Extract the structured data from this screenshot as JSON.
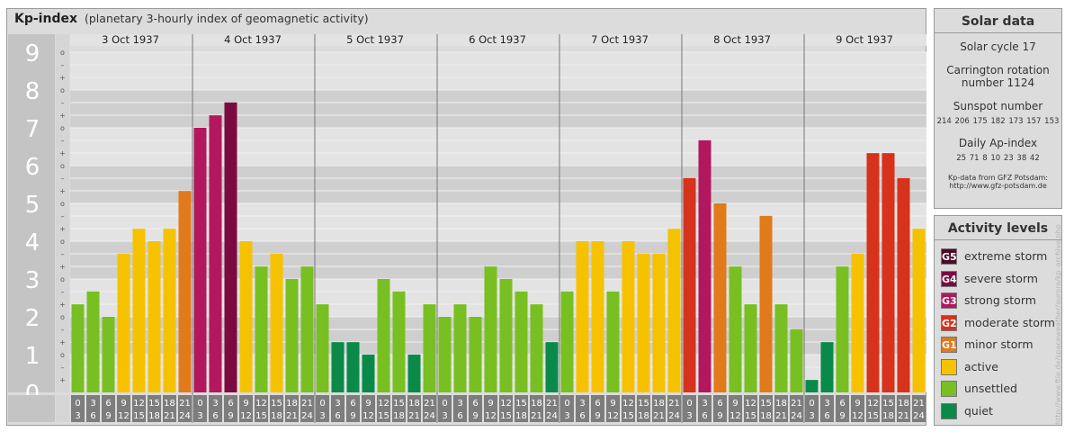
{
  "title": "Kp-index",
  "subtitle": "(planetary 3-hourly index of geomagnetic activity)",
  "y_axis": {
    "major_labels": [
      "0",
      "1",
      "2",
      "3",
      "4",
      "5",
      "6",
      "7",
      "8",
      "9"
    ],
    "minor_labels": [
      "+",
      "–",
      "o"
    ]
  },
  "chart_data": {
    "type": "bar",
    "title": "Kp-index",
    "ylim": [
      0,
      9.33
    ],
    "days": [
      "3 Oct 1937",
      "4 Oct 1937",
      "5 Oct 1937",
      "6 Oct 1937",
      "7 Oct 1937",
      "8 Oct 1937",
      "9 Oct 1937"
    ],
    "interval_top": [
      "0",
      "3",
      "6",
      "9",
      "12",
      "15",
      "18",
      "21"
    ],
    "interval_bottom": [
      "3",
      "6",
      "9",
      "12",
      "15",
      "18",
      "21",
      "24"
    ],
    "values": [
      [
        2.33,
        2.67,
        2.0,
        3.67,
        4.33,
        4.0,
        4.33,
        5.33
      ],
      [
        7.0,
        7.33,
        7.67,
        4.0,
        3.33,
        3.67,
        3.0,
        3.33
      ],
      [
        2.33,
        1.33,
        1.33,
        1.0,
        3.0,
        2.67,
        1.0,
        2.33
      ],
      [
        2.0,
        2.33,
        2.0,
        3.33,
        3.0,
        2.67,
        2.33,
        1.33
      ],
      [
        2.67,
        4.0,
        4.0,
        2.67,
        4.0,
        3.67,
        3.67,
        4.33
      ],
      [
        5.67,
        6.67,
        5.0,
        3.33,
        2.33,
        4.67,
        2.33,
        1.67
      ],
      [
        0.33,
        1.33,
        3.33,
        3.67,
        6.33,
        6.33,
        5.67,
        4.33
      ]
    ]
  },
  "solar": {
    "heading": "Solar data",
    "cycle": "Solar cycle 17",
    "rotation_line1": "Carrington rotation",
    "rotation_line2": "number 1124",
    "sunspot_label": "Sunspot number",
    "sunspot_values": "214 206 175 182 173 157 153",
    "ap_label": "Daily Ap-index",
    "ap_values": "25 71 8 10 23 38 42",
    "source_line1": "Kp-data from GFZ Potsdam:",
    "source_line2": "http://www.gfz-potsdam.de"
  },
  "levels": {
    "heading": "Activity levels",
    "items": [
      {
        "code": "G5",
        "label": "extreme storm",
        "color": "#4d0a2a"
      },
      {
        "code": "G4",
        "label": "severe storm",
        "color": "#7b0a41"
      },
      {
        "code": "G3",
        "label": "strong storm",
        "color": "#b3175e"
      },
      {
        "code": "G2",
        "label": "moderate storm",
        "color": "#d6321c"
      },
      {
        "code": "G1",
        "label": "minor storm",
        "color": "#e07a1a"
      },
      {
        "code": "",
        "label": "active",
        "color": "#f6c200"
      },
      {
        "code": "",
        "label": "unsettled",
        "color": "#78bf21"
      },
      {
        "code": "",
        "label": "quiet",
        "color": "#0a8a48"
      }
    ]
  },
  "watermark": "http://www.ftie.de/spaceweather/aurora/kp_archive.php"
}
